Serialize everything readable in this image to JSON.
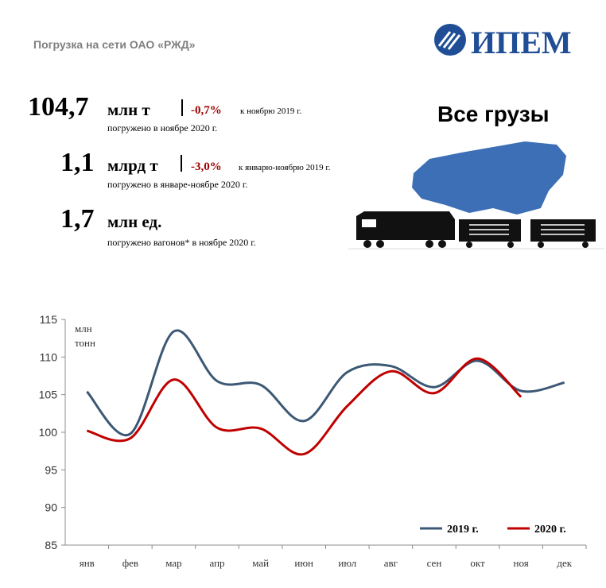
{
  "header": {
    "title": "Погрузка на сети ОАО «РЖД»",
    "logo": "ИПЕМ",
    "heading": "Все грузы"
  },
  "stats": [
    {
      "value": "104,7",
      "unit": "млн т",
      "change": "-0,7%",
      "compare": "к ноябрю 2019 г.",
      "note": "погружено в ноябре 2020 г."
    },
    {
      "value": "1,1",
      "unit": "млрд т",
      "change": "-3,0%",
      "compare": "к январю-ноябрю 2019 г.",
      "note": "погружено в январе-ноябре 2020 г."
    },
    {
      "value": "1,7",
      "unit": "млн ед.",
      "note": "погружено вагонов* в ноябре 2020 г."
    }
  ],
  "chart_data": {
    "type": "line",
    "ylabel": [
      "млн",
      "тонн"
    ],
    "categories": [
      "янв",
      "фев",
      "мар",
      "апр",
      "май",
      "июн",
      "июл",
      "авг",
      "сен",
      "окт",
      "ноя",
      "дек"
    ],
    "series": [
      {
        "name": "2019 г.",
        "color": "#3c5874",
        "values": [
          105.4,
          99.8,
          113.4,
          106.8,
          106.3,
          101.5,
          108.0,
          108.8,
          106.0,
          109.5,
          105.5,
          106.6
        ]
      },
      {
        "name": "2020 г.",
        "color": "#c00000",
        "values": [
          100.2,
          99.2,
          107.0,
          100.6,
          100.5,
          97.1,
          103.5,
          108.1,
          105.2,
          109.8,
          104.7,
          null
        ]
      }
    ],
    "ylim": [
      85,
      115
    ],
    "yticks": [
      85,
      90,
      95,
      100,
      105,
      110,
      115
    ],
    "grid": false,
    "legend": "lower right"
  }
}
